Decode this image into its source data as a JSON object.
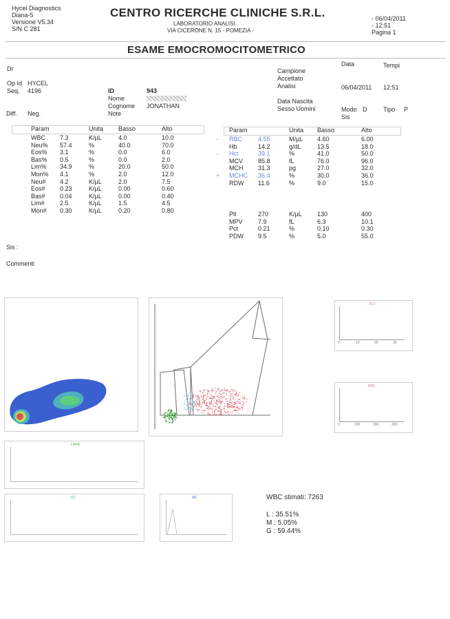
{
  "header": {
    "company": "Hycel Diagnostics",
    "model": "Diana-5",
    "version": "Versione V5.34",
    "serial": "S/N C 281",
    "lab_name": "CENTRO RICERCHE CLINICHE S.R.L.",
    "lab_sub": "LABORATORIO ANALISI",
    "address": "VIA CICERONE N. 15 - POMEZIA -",
    "date": "- 06/04/2011",
    "time": "- 12:51",
    "page": "Pagina 1"
  },
  "exam_title": "ESAME EMOCROMOCITOMETRICO",
  "info": {
    "dr_label": "Dr",
    "opid_label": "Op Id",
    "opid_value": "HYCEL",
    "seq_label": "Seq.",
    "seq_value": "4196",
    "id_label": "ID",
    "id_value": "943",
    "nome_label": "Nome",
    "cognome_label": "Cognome",
    "cognome_value": "JONATHAN",
    "note_label": "Note",
    "diff_label": "Diff.",
    "neg_label": "Neg.",
    "data_label": "Data",
    "tempi_label": "Tempi",
    "campione_label": "Campione",
    "accettato_label": "Accettato",
    "analisi_label": "Analisi",
    "analisi_date": "06/04/2011",
    "analisi_time": "12:51",
    "nascita_label": "Data Nascita",
    "sesso_label": "Sesso Uomini",
    "modo_label": "Modo",
    "modo_value": "D",
    "sis_label": "Sis",
    "tipo_label": "Tipo",
    "tipo_value": "P"
  },
  "table_headers": {
    "param": "Param",
    "unita": "Unita",
    "basso": "Basso",
    "alto": "Alto"
  },
  "left_rows": [
    {
      "param": "WBC",
      "value": "7.3",
      "unit": "K/µL",
      "low": "4.0",
      "high": "10.0"
    },
    {
      "param": "Neu%",
      "value": "57.4",
      "unit": "%",
      "low": "40.0",
      "high": "70.0"
    },
    {
      "param": "Eos%",
      "value": "3.1",
      "unit": "%",
      "low": "0.0",
      "high": "6.0"
    },
    {
      "param": "Bas%",
      "value": "0.5",
      "unit": "%",
      "low": "0.0",
      "high": "2.0"
    },
    {
      "param": "Lim%",
      "value": "34.9",
      "unit": "%",
      "low": "20.0",
      "high": "50.0"
    },
    {
      "param": "Mon%",
      "value": "4.1",
      "unit": "%",
      "low": "2.0",
      "high": "12.0"
    },
    {
      "param": "Neu#",
      "value": "4.2",
      "unit": "K/µL",
      "low": "2.0",
      "high": "7.5"
    },
    {
      "param": "Eos#",
      "value": "0.23",
      "unit": "K/µL",
      "low": "0.00",
      "high": "0.60"
    },
    {
      "param": "Bas#",
      "value": "0.04",
      "unit": "K/µL",
      "low": "0.00",
      "high": "0.40"
    },
    {
      "param": "Lim#",
      "value": "2.5",
      "unit": "K/µL",
      "low": "1.5",
      "high": "4.5"
    },
    {
      "param": "Mon#",
      "value": "0.30",
      "unit": "K/µL",
      "low": "0.20",
      "high": "0.80"
    }
  ],
  "right_rows": [
    {
      "flag": "-",
      "param": "RBC",
      "value": "4.55",
      "unit": "M/µL",
      "low": "4.60",
      "high": "6.00",
      "abnormal": true
    },
    {
      "flag": "",
      "param": "Hb",
      "value": "14.2",
      "unit": "g/dL",
      "low": "13.5",
      "high": "18.0",
      "abnormal": false
    },
    {
      "flag": "-",
      "param": "Hct",
      "value": "39.1",
      "unit": "%",
      "low": "41.0",
      "high": "50.0",
      "abnormal": true
    },
    {
      "flag": "",
      "param": "MCV",
      "value": "85.8",
      "unit": "fL",
      "low": "76.0",
      "high": "96.0",
      "abnormal": false
    },
    {
      "flag": "",
      "param": "MCH",
      "value": "31.3",
      "unit": "pg",
      "low": "27.0",
      "high": "32.0",
      "abnormal": false
    },
    {
      "flag": "+",
      "param": "MCHC",
      "value": "36.4",
      "unit": "%",
      "low": "30.0",
      "high": "36.0",
      "abnormal": true
    },
    {
      "flag": "",
      "param": "RDW",
      "value": "11.6",
      "unit": "%",
      "low": "9.0",
      "high": "15.0",
      "abnormal": false
    }
  ],
  "plt_rows": [
    {
      "param": "Plt",
      "value": "270",
      "unit": "K/µL",
      "low": "130",
      "high": "400"
    },
    {
      "param": "MPV",
      "value": "7.9",
      "unit": "fL",
      "low": "6.3",
      "high": "10.1"
    },
    {
      "param": "Pct",
      "value": "0.21",
      "unit": "%",
      "low": "0.10",
      "high": "0.30"
    },
    {
      "param": "PDW",
      "value": "9.5",
      "unit": "%",
      "low": "5.0",
      "high": "55.0"
    }
  ],
  "sis_label": "Sis :",
  "commenti_label": "Commenti",
  "histograms": {
    "plt_label": "PLT",
    "plt_ticks": [
      "0",
      "10",
      "20",
      "30"
    ],
    "rbc_label": "RBC",
    "rbc_ticks": [
      "0",
      "100",
      "200",
      "300"
    ],
    "lmne_label": "LMNE",
    "dc_label": "DC",
    "mc_label": "MC"
  },
  "summary": {
    "wbc_stimati": "WBC stimati: 7263",
    "l": "L : 35.51%",
    "m": "M : 5.05%",
    "g": "G : 59.44%"
  },
  "colors": {
    "abnormal": "#6b86d6",
    "scatter_red": "#e0666f",
    "scatter_green": "#3c9c3c"
  }
}
